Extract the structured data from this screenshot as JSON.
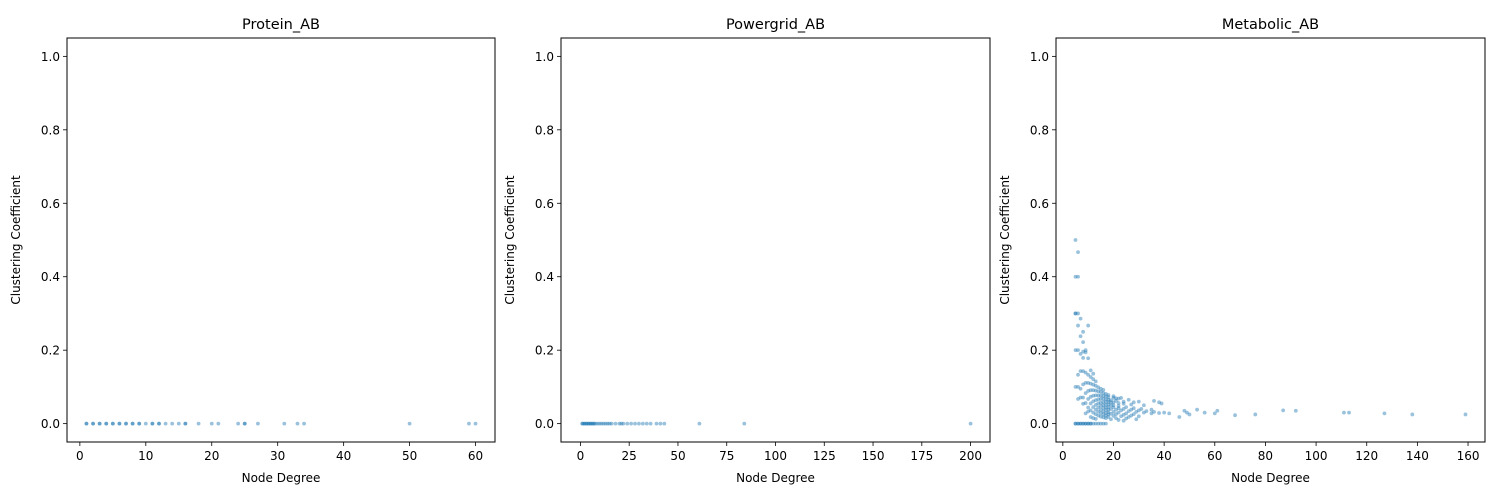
{
  "chart_data": [
    {
      "type": "scatter",
      "title": "Protein_AB",
      "xlabel": "Node Degree",
      "ylabel": "Clustering Coefficient",
      "xlim": [
        -1.95,
        62.95
      ],
      "ylim": [
        -0.05,
        1.05
      ],
      "xticks": [
        0,
        10,
        20,
        30,
        40,
        50,
        60
      ],
      "yticks": [
        0.0,
        0.2,
        0.4,
        0.6,
        0.8,
        1.0
      ],
      "color": "#1f77b4",
      "grid": false,
      "points": [
        [
          1,
          0
        ],
        [
          1,
          0
        ],
        [
          2,
          0
        ],
        [
          2,
          0
        ],
        [
          3,
          0
        ],
        [
          3,
          0
        ],
        [
          4,
          0
        ],
        [
          4,
          0
        ],
        [
          5,
          0
        ],
        [
          5,
          0
        ],
        [
          6,
          0
        ],
        [
          6,
          0
        ],
        [
          7,
          0
        ],
        [
          7,
          0
        ],
        [
          8,
          0
        ],
        [
          8,
          0
        ],
        [
          9,
          0
        ],
        [
          9,
          0
        ],
        [
          10,
          0
        ],
        [
          11,
          0
        ],
        [
          11,
          0
        ],
        [
          12,
          0
        ],
        [
          12,
          0
        ],
        [
          13,
          0
        ],
        [
          14,
          0
        ],
        [
          15,
          0
        ],
        [
          16,
          0
        ],
        [
          16,
          0
        ],
        [
          18,
          0
        ],
        [
          20,
          0
        ],
        [
          21,
          0
        ],
        [
          24,
          0
        ],
        [
          25,
          0
        ],
        [
          25,
          0
        ],
        [
          27,
          0
        ],
        [
          31,
          0
        ],
        [
          33,
          0
        ],
        [
          34,
          0
        ],
        [
          50,
          0
        ],
        [
          59,
          0
        ],
        [
          60,
          0
        ]
      ]
    },
    {
      "type": "scatter",
      "title": "Powergrid_AB",
      "xlabel": "Node Degree",
      "ylabel": "Clustering Coefficient",
      "xlim": [
        -9.95,
        209.95
      ],
      "ylim": [
        -0.05,
        1.05
      ],
      "xticks": [
        0,
        25,
        50,
        75,
        100,
        125,
        150,
        175,
        200
      ],
      "yticks": [
        0.0,
        0.2,
        0.4,
        0.6,
        0.8,
        1.0
      ],
      "color": "#1f77b4",
      "grid": false,
      "points": [
        [
          1,
          0
        ],
        [
          1,
          0
        ],
        [
          2,
          0
        ],
        [
          2,
          0
        ],
        [
          3,
          0
        ],
        [
          3,
          0
        ],
        [
          4,
          0
        ],
        [
          4,
          0
        ],
        [
          5,
          0
        ],
        [
          5,
          0
        ],
        [
          6,
          0
        ],
        [
          6,
          0
        ],
        [
          7,
          0
        ],
        [
          7,
          0
        ],
        [
          8,
          0
        ],
        [
          9,
          0
        ],
        [
          10,
          0
        ],
        [
          11,
          0
        ],
        [
          12,
          0
        ],
        [
          13,
          0
        ],
        [
          14,
          0
        ],
        [
          15,
          0
        ],
        [
          16,
          0
        ],
        [
          18,
          0
        ],
        [
          20,
          0
        ],
        [
          21,
          0
        ],
        [
          22,
          0
        ],
        [
          24,
          0
        ],
        [
          26,
          0
        ],
        [
          28,
          0
        ],
        [
          30,
          0
        ],
        [
          32,
          0
        ],
        [
          34,
          0
        ],
        [
          36,
          0
        ],
        [
          39,
          0
        ],
        [
          41,
          0
        ],
        [
          43,
          0
        ],
        [
          61,
          0
        ],
        [
          84,
          0
        ],
        [
          200,
          0
        ]
      ]
    },
    {
      "type": "scatter",
      "title": "Metabolic_AB",
      "xlabel": "Node Degree",
      "ylabel": "Clustering Coefficient",
      "xlim": [
        -2.7,
        166.7
      ],
      "ylim": [
        -0.05,
        1.05
      ],
      "xticks": [
        0,
        20,
        40,
        60,
        80,
        100,
        120,
        140,
        160
      ],
      "yticks": [
        0.0,
        0.2,
        0.4,
        0.6,
        0.8,
        1.0
      ],
      "color": "#1f77b4",
      "grid": false,
      "points": [
        [
          5,
          0.5
        ],
        [
          6,
          0.467
        ],
        [
          5,
          0.4
        ],
        [
          6,
          0.4
        ],
        [
          5,
          0.3
        ],
        [
          5,
          0.3
        ],
        [
          6,
          0.3
        ],
        [
          7,
          0.286
        ],
        [
          6,
          0.267
        ],
        [
          8,
          0.25
        ],
        [
          7,
          0.238
        ],
        [
          8,
          0.222
        ],
        [
          10,
          0.267
        ],
        [
          9,
          0.2
        ],
        [
          5,
          0.2
        ],
        [
          6,
          0.2
        ],
        [
          7,
          0.19
        ],
        [
          8,
          0.196
        ],
        [
          9,
          0.194
        ],
        [
          8,
          0.179
        ],
        [
          10,
          0.178
        ],
        [
          11,
          0.145
        ],
        [
          12,
          0.136
        ],
        [
          6,
          0.133
        ],
        [
          7,
          0.143
        ],
        [
          8,
          0.143
        ],
        [
          9,
          0.139
        ],
        [
          10,
          0.133
        ],
        [
          11,
          0.127
        ],
        [
          12,
          0.121
        ],
        [
          13,
          0.115
        ],
        [
          5,
          0.1
        ],
        [
          6,
          0.1
        ],
        [
          7,
          0.095
        ],
        [
          8,
          0.107
        ],
        [
          9,
          0.111
        ],
        [
          10,
          0.111
        ],
        [
          11,
          0.109
        ],
        [
          12,
          0.106
        ],
        [
          13,
          0.103
        ],
        [
          14,
          0.099
        ],
        [
          15,
          0.095
        ],
        [
          16,
          0.092
        ],
        [
          7,
          0.071
        ],
        [
          8,
          0.071
        ],
        [
          9,
          0.083
        ],
        [
          10,
          0.089
        ],
        [
          11,
          0.091
        ],
        [
          12,
          0.091
        ],
        [
          13,
          0.09
        ],
        [
          14,
          0.088
        ],
        [
          15,
          0.086
        ],
        [
          16,
          0.083
        ],
        [
          17,
          0.081
        ],
        [
          18,
          0.078
        ],
        [
          20,
          0.075
        ],
        [
          6,
          0.067
        ],
        [
          8,
          0.054
        ],
        [
          9,
          0.056
        ],
        [
          10,
          0.067
        ],
        [
          11,
          0.073
        ],
        [
          12,
          0.076
        ],
        [
          13,
          0.077
        ],
        [
          14,
          0.077
        ],
        [
          15,
          0.076
        ],
        [
          16,
          0.075
        ],
        [
          17,
          0.074
        ],
        [
          18,
          0.072
        ],
        [
          20,
          0.07
        ],
        [
          21,
          0.069
        ],
        [
          22,
          0.068
        ],
        [
          23,
          0.07
        ],
        [
          10,
          0.044
        ],
        [
          11,
          0.055
        ],
        [
          12,
          0.061
        ],
        [
          13,
          0.064
        ],
        [
          14,
          0.066
        ],
        [
          15,
          0.067
        ],
        [
          16,
          0.067
        ],
        [
          17,
          0.066
        ],
        [
          18,
          0.065
        ],
        [
          19,
          0.064
        ],
        [
          21,
          0.062
        ],
        [
          24,
          0.06
        ],
        [
          26,
          0.065
        ],
        [
          28,
          0.058
        ],
        [
          9,
          0.028
        ],
        [
          10,
          0.033
        ],
        [
          11,
          0.036
        ],
        [
          12,
          0.045
        ],
        [
          13,
          0.051
        ],
        [
          14,
          0.055
        ],
        [
          15,
          0.057
        ],
        [
          16,
          0.058
        ],
        [
          17,
          0.059
        ],
        [
          18,
          0.059
        ],
        [
          19,
          0.058
        ],
        [
          20,
          0.058
        ],
        [
          22,
          0.056
        ],
        [
          24,
          0.054
        ],
        [
          27,
          0.052
        ],
        [
          30,
          0.06
        ],
        [
          32,
          0.05
        ],
        [
          36,
          0.062
        ],
        [
          38,
          0.058
        ],
        [
          39,
          0.055
        ],
        [
          11,
          0.018
        ],
        [
          12,
          0.03
        ],
        [
          13,
          0.038
        ],
        [
          14,
          0.044
        ],
        [
          15,
          0.048
        ],
        [
          16,
          0.05
        ],
        [
          17,
          0.051
        ],
        [
          18,
          0.052
        ],
        [
          19,
          0.05
        ],
        [
          20,
          0.05
        ],
        [
          22,
          0.048
        ],
        [
          25,
          0.045
        ],
        [
          28,
          0.042
        ],
        [
          31,
          0.04
        ],
        [
          35,
          0.038
        ],
        [
          12,
          0.015
        ],
        [
          13,
          0.026
        ],
        [
          14,
          0.033
        ],
        [
          15,
          0.038
        ],
        [
          16,
          0.042
        ],
        [
          17,
          0.044
        ],
        [
          18,
          0.045
        ],
        [
          20,
          0.044
        ],
        [
          22,
          0.042
        ],
        [
          24,
          0.04
        ],
        [
          27,
          0.038
        ],
        [
          30,
          0.036
        ],
        [
          33,
          0.034
        ],
        [
          36,
          0.032
        ],
        [
          40,
          0.03
        ],
        [
          13,
          0.013
        ],
        [
          14,
          0.022
        ],
        [
          15,
          0.029
        ],
        [
          16,
          0.033
        ],
        [
          17,
          0.037
        ],
        [
          18,
          0.038
        ],
        [
          19,
          0.04
        ],
        [
          21,
          0.038
        ],
        [
          23,
          0.036
        ],
        [
          26,
          0.034
        ],
        [
          29,
          0.032
        ],
        [
          32,
          0.03
        ],
        [
          35,
          0.028
        ],
        [
          38,
          0.029
        ],
        [
          42,
          0.028
        ],
        [
          15,
          0.019
        ],
        [
          16,
          0.025
        ],
        [
          17,
          0.029
        ],
        [
          18,
          0.031
        ],
        [
          20,
          0.032
        ],
        [
          22,
          0.03
        ],
        [
          25,
          0.028
        ],
        [
          28,
          0.026
        ],
        [
          16,
          0.017
        ],
        [
          17,
          0.022
        ],
        [
          18,
          0.025
        ],
        [
          19,
          0.027
        ],
        [
          21,
          0.026
        ],
        [
          24,
          0.024
        ],
        [
          27,
          0.022
        ],
        [
          30,
          0.02
        ],
        [
          17,
          0.015
        ],
        [
          18,
          0.018
        ],
        [
          20,
          0.021
        ],
        [
          23,
          0.02
        ],
        [
          26,
          0.018
        ],
        [
          19,
          0.012
        ],
        [
          21,
          0.015
        ],
        [
          25,
          0.014
        ],
        [
          29,
          0.012
        ],
        [
          22,
          0.01
        ],
        [
          24,
          0.008
        ],
        [
          48,
          0.035
        ],
        [
          49,
          0.03
        ],
        [
          50,
          0.025
        ],
        [
          46,
          0.018
        ],
        [
          53,
          0.038
        ],
        [
          56,
          0.03
        ],
        [
          60,
          0.028
        ],
        [
          61,
          0.035
        ],
        [
          68,
          0.023
        ],
        [
          76,
          0.025
        ],
        [
          87,
          0.036
        ],
        [
          92,
          0.035
        ],
        [
          111,
          0.03
        ],
        [
          113,
          0.03
        ],
        [
          127,
          0.028
        ],
        [
          138,
          0.025
        ],
        [
          159,
          0.025
        ],
        [
          5,
          0
        ],
        [
          5,
          0
        ],
        [
          6,
          0
        ],
        [
          6,
          0
        ],
        [
          7,
          0
        ],
        [
          7,
          0
        ],
        [
          8,
          0
        ],
        [
          8,
          0
        ],
        [
          9,
          0
        ],
        [
          9,
          0
        ],
        [
          10,
          0
        ],
        [
          10,
          0
        ],
        [
          11,
          0
        ],
        [
          11,
          0
        ],
        [
          12,
          0
        ],
        [
          13,
          0
        ],
        [
          14,
          0
        ],
        [
          15,
          0
        ],
        [
          16,
          0
        ],
        [
          17,
          0
        ]
      ]
    }
  ]
}
